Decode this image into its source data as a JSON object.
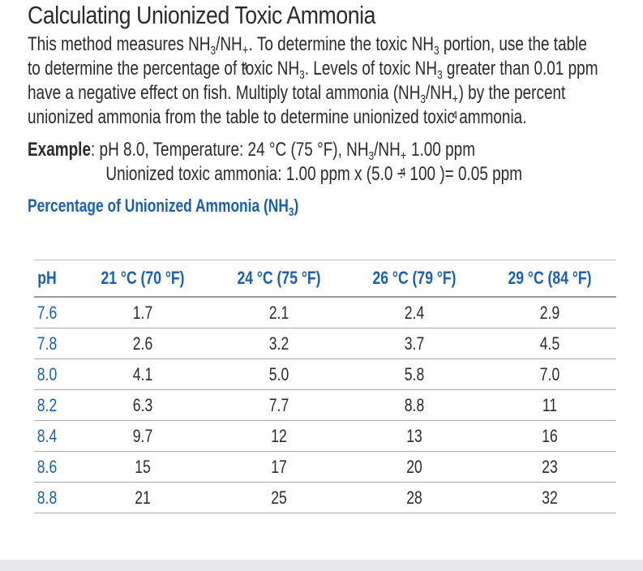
{
  "heading": "Calculating Unionized Toxic Ammonia",
  "intro": {
    "t1": "This method measures NH",
    "t2": "/NH",
    "t3": ". To determine the toxic NH",
    "t4": " portion, use the table",
    "t5": "to determine the percentage of toxic NH",
    "t6": ". Levels of toxic NH",
    "t7": " greater than 0.01 ppm",
    "t8": "have a negative effect on fish. Multiply total ammonia (NH",
    "t9": "/NH",
    "t10": ") by the percent",
    "t11": "unionized ammonia from the table to determine unionized toxic ammonia.",
    "sub3": "3",
    "sub4": "4",
    "plus": "+"
  },
  "example": {
    "label": "Example",
    "line1_rest": ": pH 8.0, Temperature: 24 °C (75 °F), NH",
    "line1_mid": "/NH",
    "line1_end": " 1.00 ppm",
    "line2": "Unionized toxic ammonia: 1.00 ppm x (5.0 ÷ 100 )= 0.05 ppm"
  },
  "table": {
    "title_pre": "Percentage of Unionized Ammonia (NH",
    "title_sub": "3",
    "title_post": ")",
    "headers": [
      "pH",
      "21 °C (70 °F)",
      "24 °C (75 °F)",
      "26 °C (79 °F)",
      "29 °C (84 °F)"
    ],
    "rows": [
      [
        "7.6",
        "1.7",
        "2.1",
        "2.4",
        "2.9"
      ],
      [
        "7.8",
        "2.6",
        "3.2",
        "3.7",
        "4.5"
      ],
      [
        "8.0",
        "4.1",
        "5.0",
        "5.8",
        "7.0"
      ],
      [
        "8.2",
        "6.3",
        "7.7",
        "8.8",
        "11"
      ],
      [
        "8.4",
        "9.7",
        "12",
        "13",
        "16"
      ],
      [
        "8.6",
        "15",
        "17",
        "20",
        "23"
      ],
      [
        "8.8",
        "21",
        "25",
        "28",
        "32"
      ]
    ]
  },
  "colors": {
    "accent": "#1b5fb3",
    "text": "#2b2b2b",
    "footer": "#e7e7ea"
  }
}
